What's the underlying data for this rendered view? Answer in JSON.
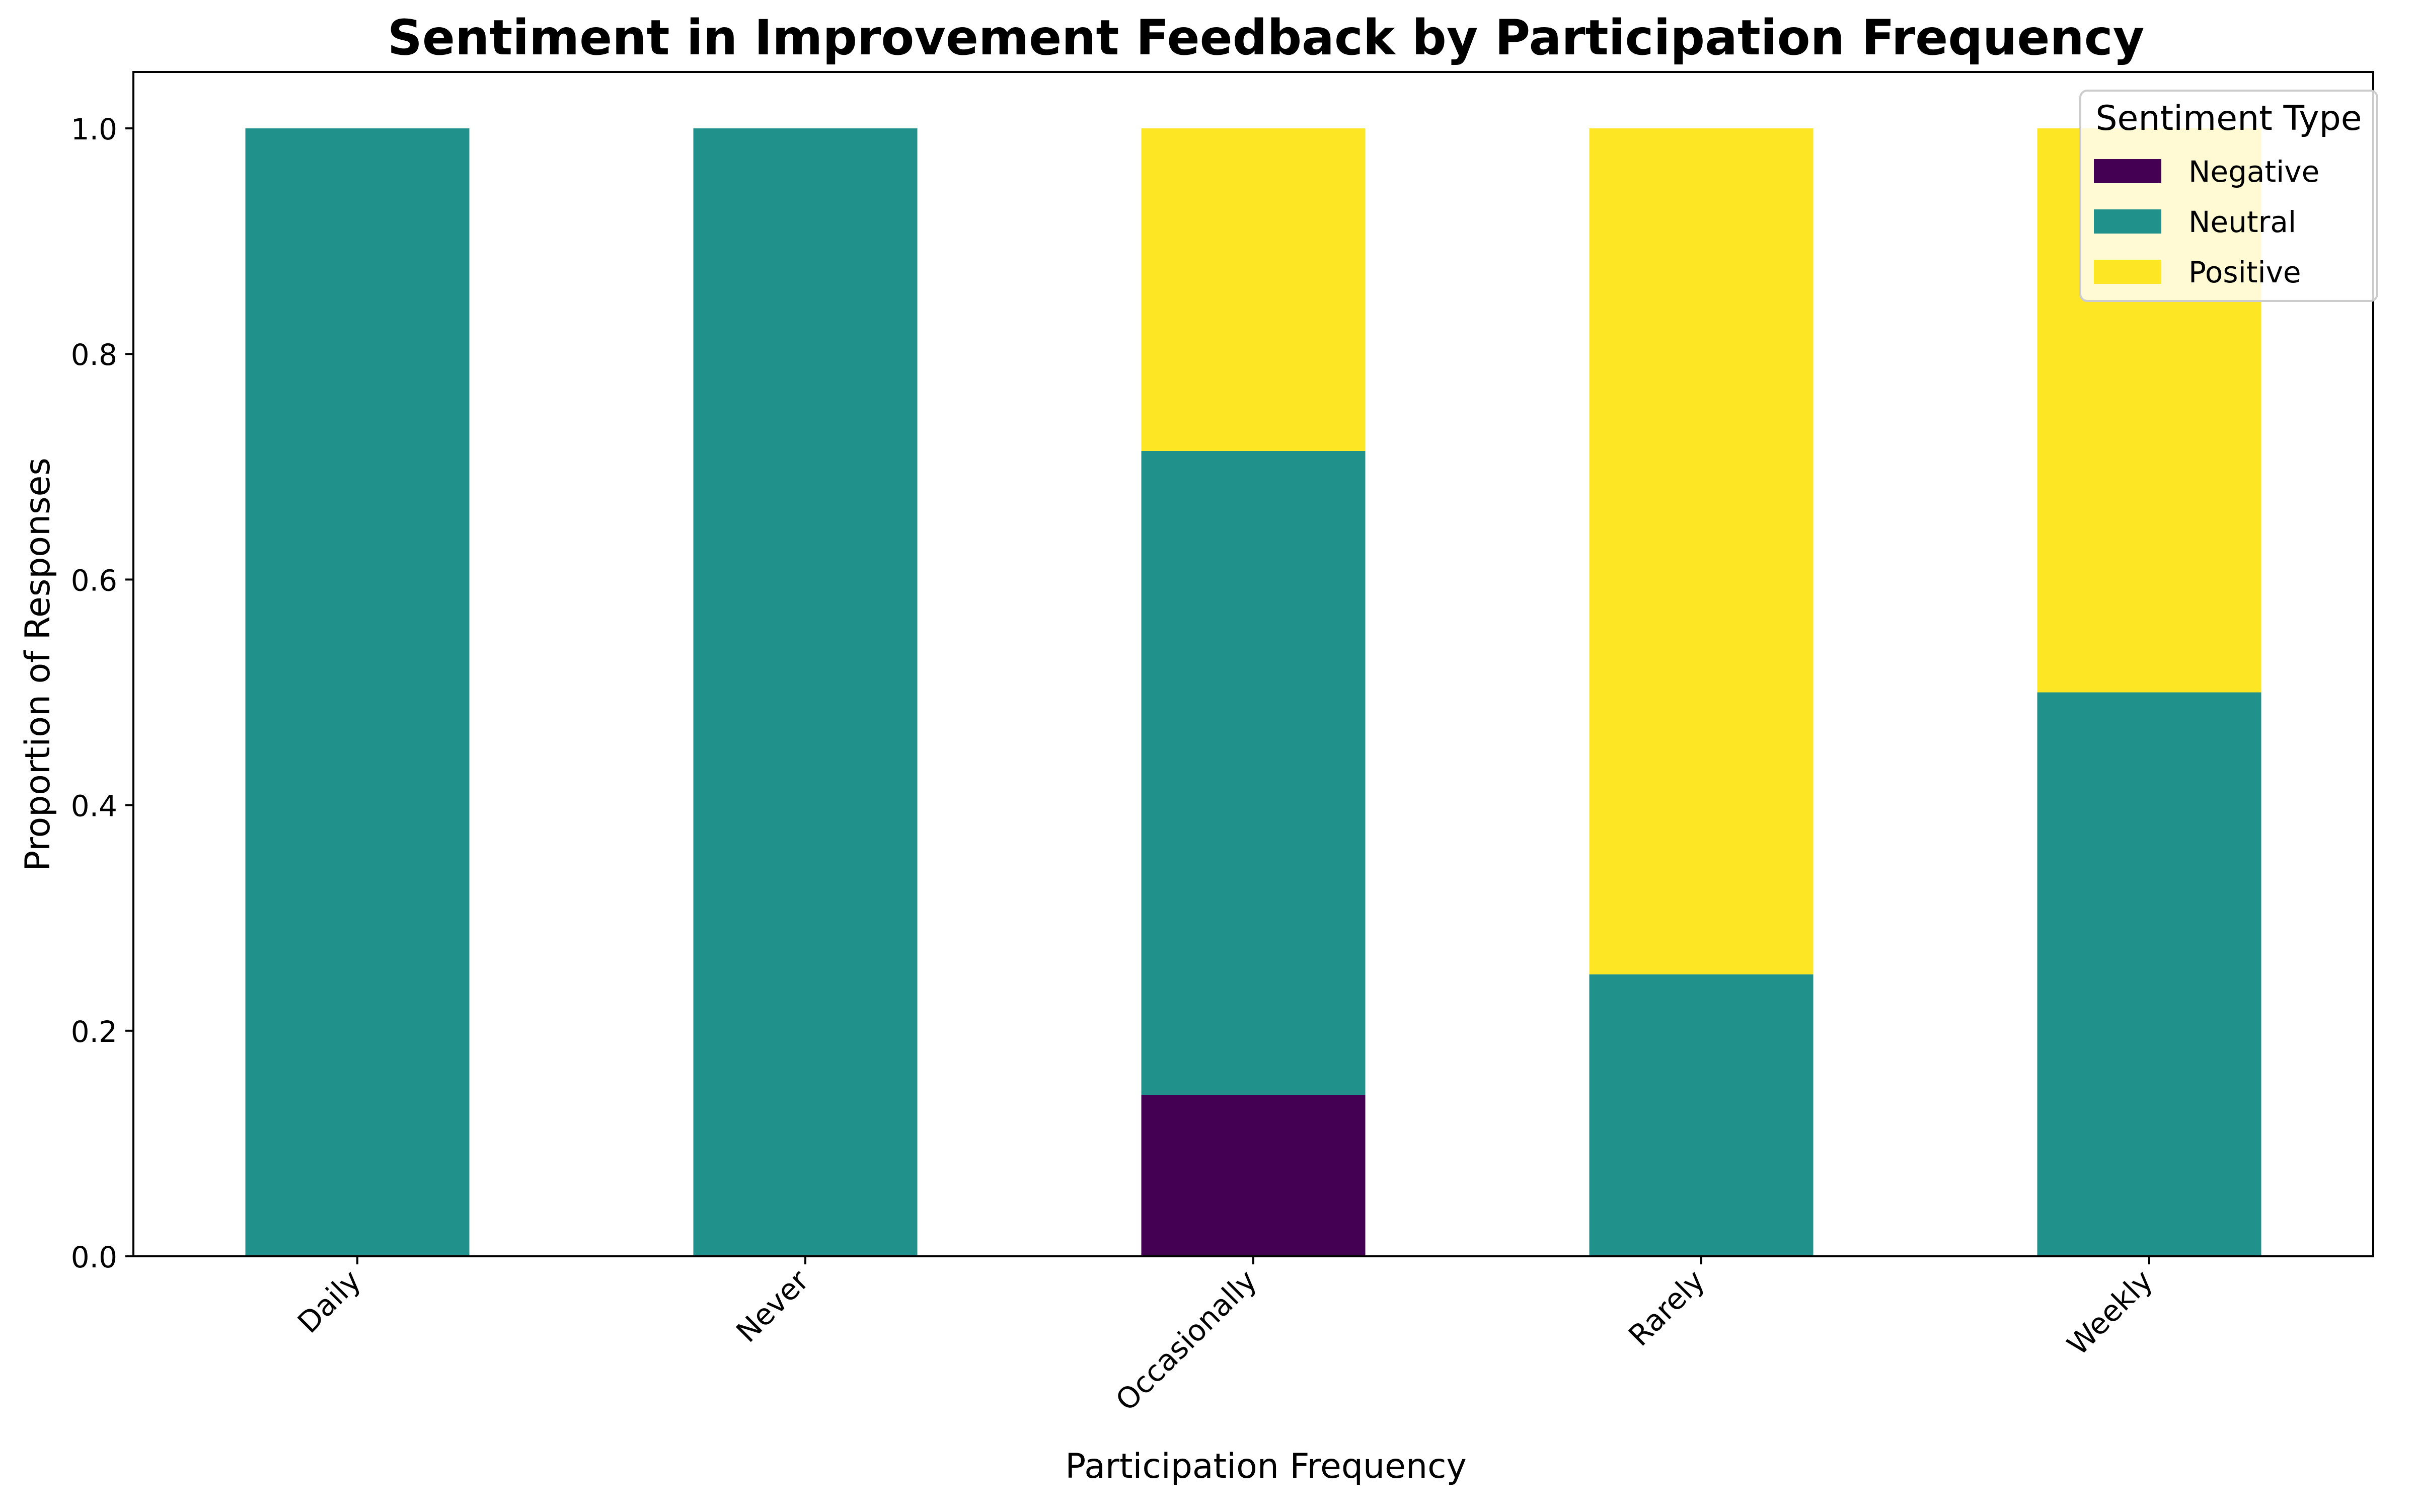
{
  "chart_data": {
    "type": "bar",
    "stacked": true,
    "title": "Sentiment in Improvement Feedback by Participation Frequency",
    "xlabel": "Participation Frequency",
    "ylabel": "Proportion of Responses",
    "categories": [
      "Daily",
      "Never",
      "Occasionally",
      "Rarely",
      "Weekly"
    ],
    "series": [
      {
        "name": "Negative",
        "color": "#440154",
        "values": [
          0.0,
          0.0,
          0.143,
          0.0,
          0.0
        ]
      },
      {
        "name": "Neutral",
        "color": "#21918c",
        "values": [
          1.0,
          1.0,
          0.571,
          0.25,
          0.5
        ]
      },
      {
        "name": "Positive",
        "color": "#fde725",
        "values": [
          0.0,
          0.0,
          0.286,
          0.75,
          0.5
        ]
      }
    ],
    "ylim": [
      0,
      1.05
    ],
    "yticks": [
      "0.0",
      "0.2",
      "0.4",
      "0.6",
      "0.8",
      "1.0"
    ],
    "grid": false,
    "legend": {
      "title": "Sentiment Type",
      "position": "top-right"
    }
  }
}
